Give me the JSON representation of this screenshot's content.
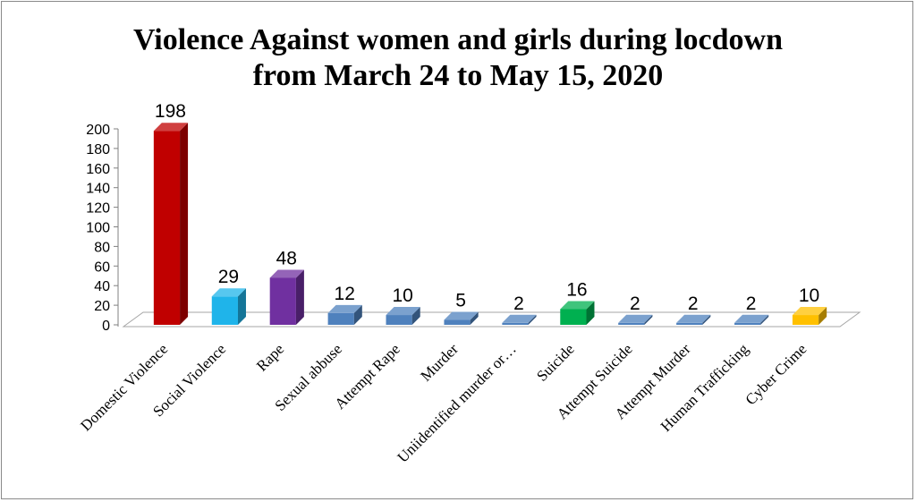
{
  "chart_data": {
    "type": "bar",
    "title_lines": [
      "Violence Against women and girls during locdown",
      "from March 24 to May 15, 2020"
    ],
    "categories": [
      "Domestic Violence",
      "Social Violence",
      "Rape",
      "Sexual abbuse",
      "Attempt Rape",
      "Murder",
      "Uniidentified murder or…",
      "Suicide",
      "Attempt Suicide",
      "Attempt Murder",
      "Human Trafficking",
      "Cyber Crime"
    ],
    "values": [
      198,
      29,
      48,
      12,
      10,
      5,
      2,
      16,
      2,
      2,
      2,
      10
    ],
    "bar_colors": [
      "#c00000",
      "#1fb4ea",
      "#7030a0",
      "#4f81bd",
      "#4f81bd",
      "#4f81bd",
      "#4f81bd",
      "#00b050",
      "#4f81bd",
      "#4f81bd",
      "#4f81bd",
      "#ffc000"
    ],
    "yticks": [
      0,
      20,
      40,
      60,
      80,
      100,
      120,
      140,
      160,
      180,
      200
    ],
    "ylim": [
      0,
      200
    ],
    "xlabel": "",
    "ylabel": "",
    "grid": false,
    "legend": "none",
    "style": "3d-column"
  }
}
